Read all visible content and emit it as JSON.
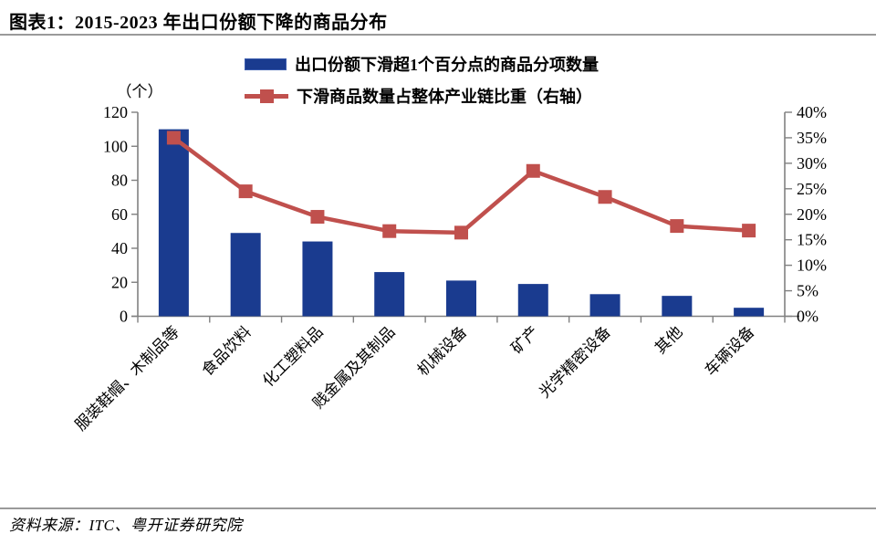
{
  "title": "图表1：2015-2023 年出口份额下降的商品分布",
  "footer": {
    "source": "资料来源：ITC、粤开证券研究院"
  },
  "colors": {
    "bar": "#1A3B8F",
    "line": "#C0504D",
    "axis": "#808080",
    "rule": "#9A9A9A",
    "text": "#000000"
  },
  "chart_data": {
    "type": "combo_bar_line",
    "title": "图表1：2015-2023 年出口份额下降的商品分布",
    "categories": [
      "服装鞋帽、木制品等",
      "食品饮料",
      "化工塑料品",
      "贱金属及其制品",
      "机械设备",
      "矿产",
      "光学精密设备",
      "其他",
      "车辆设备"
    ],
    "series": [
      {
        "name": "出口份额下滑超1个百分点的商品分项数量",
        "type": "bar",
        "axis": "left",
        "color": "#1A3B8F",
        "values": [
          110,
          49,
          44,
          26,
          21,
          19,
          13,
          12,
          5
        ]
      },
      {
        "name": "下滑商品数量占整体产业链比重（右轴）",
        "type": "line",
        "axis": "right",
        "marker": "square",
        "color": "#C0504D",
        "unit": "%",
        "values": [
          35.0,
          24.5,
          19.5,
          16.7,
          16.4,
          28.5,
          23.4,
          17.7,
          16.8
        ]
      }
    ],
    "left_axis": {
      "unit_label": "（个）",
      "min": 0,
      "max": 120,
      "step": 20,
      "ticks": [
        "0",
        "20",
        "40",
        "60",
        "80",
        "100",
        "120"
      ]
    },
    "right_axis": {
      "min": 0,
      "max": 40,
      "step": 5,
      "ticks": [
        "0%",
        "5%",
        "10%",
        "15%",
        "20%",
        "25%",
        "30%",
        "35%",
        "40%"
      ]
    },
    "legend_position": "top",
    "grid": false
  }
}
